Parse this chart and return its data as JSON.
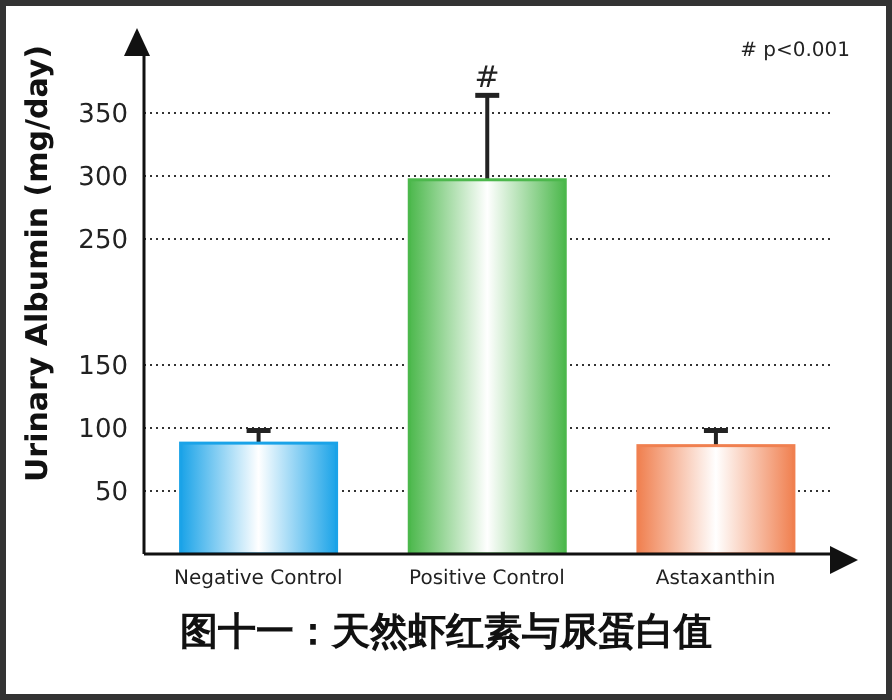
{
  "chart_data": {
    "type": "bar",
    "title": "图十一：天然虾红素与尿蛋白值",
    "ylabel": "Urinary Albumin (mg/day)",
    "categories": [
      "Negative Control",
      "Positive Control",
      "Astaxanthin"
    ],
    "values": [
      88,
      297,
      86
    ],
    "errors": [
      10,
      67,
      12
    ],
    "colors": [
      "#1aa3e8",
      "#4cb84c",
      "#f08050"
    ],
    "ylim": [
      0,
      400
    ],
    "yticks": [
      50,
      100,
      150,
      250,
      300,
      350
    ],
    "grid": "y",
    "legend": false,
    "annotations": [
      {
        "text": "#",
        "x": "Positive Control",
        "y": 364
      },
      "# p<0.001"
    ]
  }
}
